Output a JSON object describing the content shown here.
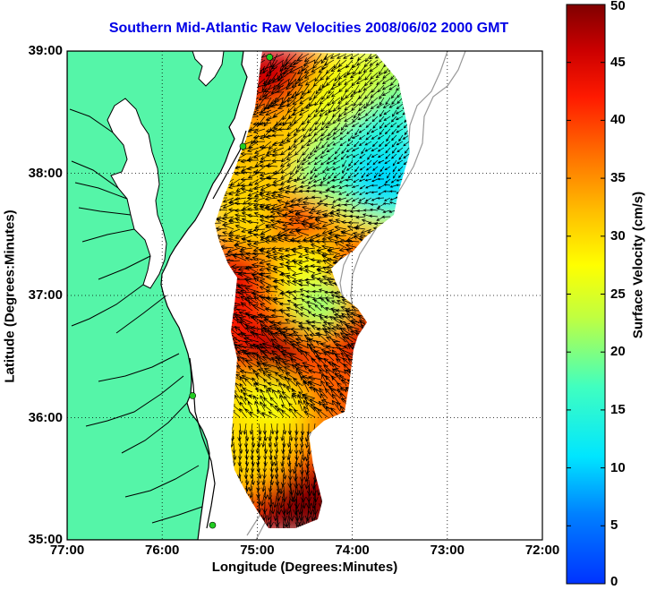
{
  "title": "Southern Mid-Atlantic Raw Velocities 2008/06/02 2000 GMT",
  "chart_data": {
    "type": "heatmap",
    "xlabel": "Longitude (Degrees:Minutes)",
    "ylabel": "Latitude (Degrees:Minutes)",
    "x_ticks": [
      "77:00",
      "76:00",
      "75:00",
      "74:00",
      "73:00",
      "72:00"
    ],
    "y_ticks": [
      "39:00",
      "38:00",
      "37:00",
      "36:00",
      "35:00"
    ],
    "xlim": [
      -77,
      -72
    ],
    "ylim": [
      35,
      39
    ],
    "grid": true,
    "colorbar": {
      "label": "Surface Velocity (cm/s)",
      "range": [
        0,
        50
      ],
      "ticks": [
        0,
        5,
        10,
        15,
        20,
        25,
        30,
        35,
        40,
        45,
        50
      ]
    },
    "colors": {
      "land": "#55f5a8",
      "coast": "#000000",
      "arrows": "#000000",
      "stations": "#22cc22",
      "isobath": "#999999"
    },
    "stations": [
      {
        "lon": -74.87,
        "lat": 38.95
      },
      {
        "lon": -75.15,
        "lat": 38.22
      },
      {
        "lon": -75.68,
        "lat": 36.18
      },
      {
        "lon": -75.47,
        "lat": 35.12
      }
    ],
    "velocity_regions": [
      {
        "lon": -74.85,
        "lat": 38.85,
        "speed": 46
      },
      {
        "lon": -74.1,
        "lat": 38.6,
        "speed": 26
      },
      {
        "lon": -73.8,
        "lat": 38.3,
        "speed": 14
      },
      {
        "lon": -73.75,
        "lat": 38.0,
        "speed": 10
      },
      {
        "lon": -74.3,
        "lat": 38.0,
        "speed": 18
      },
      {
        "lon": -74.8,
        "lat": 38.2,
        "speed": 32
      },
      {
        "lon": -74.55,
        "lat": 37.6,
        "speed": 40
      },
      {
        "lon": -75.05,
        "lat": 37.6,
        "speed": 30
      },
      {
        "lon": -75.25,
        "lat": 37.15,
        "speed": 44
      },
      {
        "lon": -74.45,
        "lat": 37.25,
        "speed": 27
      },
      {
        "lon": -74.0,
        "lat": 37.2,
        "speed": 40
      },
      {
        "lon": -74.3,
        "lat": 36.95,
        "speed": 20
      },
      {
        "lon": -74.8,
        "lat": 36.5,
        "speed": 48
      },
      {
        "lon": -73.9,
        "lat": 36.65,
        "speed": 46
      },
      {
        "lon": -74.85,
        "lat": 36.2,
        "speed": 26
      },
      {
        "lon": -74.1,
        "lat": 36.3,
        "speed": 38
      },
      {
        "lon": -74.95,
        "lat": 35.7,
        "speed": 30
      },
      {
        "lon": -74.55,
        "lat": 35.3,
        "speed": 50
      }
    ]
  }
}
